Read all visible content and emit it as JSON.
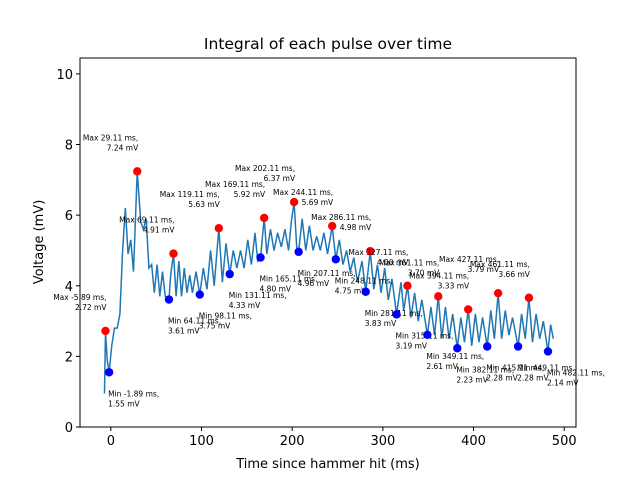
{
  "chart_data": {
    "type": "line",
    "title": "Integral of each pulse over time",
    "x_label": "Time since hammer hit (ms)",
    "y_label": "Voltage (mV)",
    "xlim": [
      -34,
      513
    ],
    "ylim": [
      0,
      10.45
    ],
    "xticks": [
      0,
      100,
      200,
      300,
      400,
      500
    ],
    "yticks": [
      0,
      2,
      4,
      6,
      8,
      10
    ],
    "series": [
      {
        "type": "line",
        "color": "#1f77b4",
        "x": [
          -7,
          -5.89,
          -4,
          -1.89,
          1,
          4,
          7,
          10,
          13,
          16,
          19,
          22,
          25,
          29.11,
          33,
          36,
          39,
          42,
          45,
          48,
          51,
          54,
          57,
          60,
          64.11,
          66,
          69.11,
          72,
          75,
          78,
          81,
          84,
          87,
          90,
          94,
          98.11,
          102,
          106,
          110,
          114,
          119.11,
          123,
          127,
          131.11,
          135,
          139,
          143,
          147,
          151,
          155,
          159,
          162,
          165.11,
          169.11,
          172,
          176,
          180,
          184,
          188,
          192,
          196,
          199,
          202.11,
          205,
          207.11,
          211,
          215,
          219,
          223,
          227,
          231,
          235,
          239,
          244.11,
          248.11,
          252,
          256,
          260,
          264,
          268,
          272,
          277,
          281.11,
          286.11,
          290,
          294,
          298,
          302,
          306,
          310,
          315.11,
          320,
          323,
          327.11,
          331,
          335,
          339,
          343,
          349.11,
          353,
          357,
          361.11,
          365,
          369,
          373,
          377,
          382.11,
          386,
          390,
          394.11,
          398,
          402,
          406,
          410,
          415.11,
          419,
          423,
          427.11,
          431,
          435,
          439,
          443,
          449.11,
          453,
          457,
          461.11,
          465,
          469,
          473,
          477,
          482.11,
          485,
          488
        ],
        "values": [
          0.95,
          2.72,
          1.9,
          1.55,
          2.3,
          2.8,
          2.8,
          3.2,
          5.0,
          6.2,
          4.9,
          5.3,
          4.4,
          7.24,
          5.8,
          5.6,
          5.9,
          4.5,
          4.6,
          3.8,
          4.6,
          3.7,
          4.4,
          3.7,
          3.61,
          4.3,
          4.91,
          3.7,
          4.7,
          3.7,
          4.5,
          3.8,
          4.3,
          3.8,
          4.4,
          3.75,
          4.5,
          3.9,
          5.0,
          4.0,
          5.63,
          4.1,
          5.2,
          4.33,
          5.0,
          4.5,
          5.0,
          4.5,
          5.3,
          4.6,
          5.5,
          4.7,
          4.8,
          5.92,
          4.9,
          5.6,
          5.0,
          5.5,
          5.1,
          5.6,
          5.0,
          5.8,
          6.37,
          5.1,
          4.96,
          5.9,
          5.0,
          5.7,
          5.0,
          5.4,
          5.0,
          5.5,
          4.9,
          5.69,
          4.75,
          5.3,
          4.6,
          5.0,
          4.4,
          4.8,
          4.1,
          4.7,
          3.83,
          4.98,
          3.9,
          4.6,
          3.8,
          4.5,
          3.6,
          4.2,
          3.19,
          4.1,
          3.3,
          4.0,
          3.1,
          3.8,
          3.0,
          3.6,
          2.61,
          3.4,
          2.6,
          3.7,
          2.5,
          3.4,
          2.5,
          3.2,
          2.23,
          3.1,
          2.4,
          3.33,
          2.3,
          3.2,
          2.4,
          3.1,
          2.28,
          3.3,
          2.5,
          3.79,
          2.5,
          3.3,
          2.6,
          3.1,
          2.28,
          3.2,
          2.5,
          3.66,
          2.4,
          3.2,
          2.5,
          3.0,
          2.14,
          2.9,
          2.5
        ]
      },
      {
        "type": "scatter",
        "color": "#ff0000",
        "label_side": "above",
        "x": [
          -5.89,
          29.11,
          69.11,
          119.11,
          169.11,
          202.11,
          244.11,
          286.11,
          327.11,
          361.11,
          394.11,
          427.11,
          461.11
        ],
        "values": [
          2.72,
          7.24,
          4.91,
          5.63,
          5.92,
          6.37,
          5.69,
          4.98,
          4.0,
          3.7,
          3.33,
          3.79,
          3.66
        ],
        "value_labels": [
          [
            "Max -5.89 ms,",
            "2.72 mV"
          ],
          [
            "Max 29.11 ms,",
            "7.24 mV"
          ],
          [
            "Max 69.11 ms,",
            "4.91 mV"
          ],
          [
            "Max 119.11 ms,",
            "5.63 mV"
          ],
          [
            "Max 169.11 ms,",
            "5.92 mV"
          ],
          [
            "Max 202.11 ms,",
            "6.37 mV"
          ],
          [
            "Max 244.11 ms,",
            "5.69 mV"
          ],
          [
            "Max 286.11 ms,",
            "4.98 mV"
          ],
          [
            "Max 327.11 ms,",
            "4.00 mV"
          ],
          [
            "Max 361.11 ms,",
            "3.70 mV"
          ],
          [
            "Max 394.11 ms,",
            "3.33 mV"
          ],
          [
            "Max 427.11 ms,",
            "3.79 mV"
          ],
          [
            "Max 461.11 ms,",
            "3.66 mV"
          ]
        ]
      },
      {
        "type": "scatter",
        "color": "#0000ff",
        "label_side": "below",
        "x": [
          -1.89,
          64.11,
          98.11,
          131.11,
          165.11,
          207.11,
          248.11,
          281.11,
          315.11,
          349.11,
          382.11,
          415.11,
          449.11,
          482.11
        ],
        "values": [
          1.55,
          3.61,
          3.75,
          4.33,
          4.8,
          4.96,
          4.75,
          3.83,
          3.19,
          2.61,
          2.23,
          2.28,
          2.28,
          2.14
        ],
        "value_labels": [
          [
            "Min -1.89 ms,",
            "1.55 mV"
          ],
          [
            "Min 64.11 ms,",
            "3.61 mV"
          ],
          [
            "Min 98.11 ms,",
            "3.75 mV"
          ],
          [
            "Min 131.11 ms,",
            "4.33 mV"
          ],
          [
            "Min 165.11 ms,",
            "4.80 mV"
          ],
          [
            "Min 207.11 ms,",
            "4.96 mV"
          ],
          [
            "Min 248.11 ms,",
            "4.75 mV"
          ],
          [
            "Min 281.11 ms,",
            "3.83 mV"
          ],
          [
            "Min 315.11 ms,",
            "3.19 mV"
          ],
          [
            "Min 349.11 ms,",
            "2.61 mV"
          ],
          [
            "Min 382.11 ms,",
            "2.23 mV"
          ],
          [
            "Min 415.11 ms,",
            "2.28 mV"
          ],
          [
            "Min 449.11 ms,",
            "2.28 mV"
          ],
          [
            "Min 482.11 ms,",
            "2.14 mV"
          ]
        ]
      }
    ]
  }
}
